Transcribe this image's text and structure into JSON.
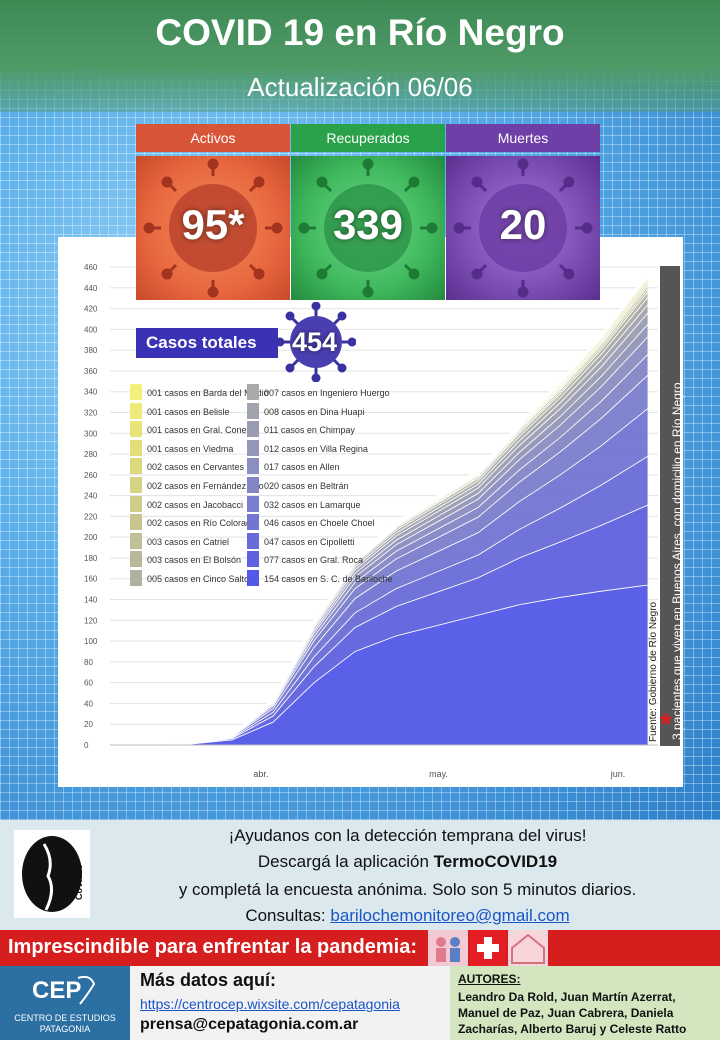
{
  "header": {
    "title": "COVID 19 en Río Negro",
    "subtitle": "Actualización  06/06"
  },
  "stats": [
    {
      "label": "Activos",
      "value": "95",
      "mark": "*",
      "label_color": "#d9553a",
      "box_color": "#e8683f"
    },
    {
      "label": "Recuperados",
      "value": "339",
      "label_color": "#2aa24a",
      "box_color": "#3fb85c"
    },
    {
      "label": "Muertes",
      "value": "20",
      "label_color": "#6e3fa6",
      "box_color": "#7c4eb4"
    }
  ],
  "totals": {
    "label": "Casos totales",
    "value": "454"
  },
  "legend": [
    {
      "text": "001 casos en Barda del Medio",
      "color": "#f3ef7a"
    },
    {
      "text": "001 casos en Belisle",
      "color": "#eeea7a"
    },
    {
      "text": "001 casos en Gral. Conesa",
      "color": "#e8e479"
    },
    {
      "text": "001 casos en Viedma",
      "color": "#e2df7a"
    },
    {
      "text": "002 casos en Cervantes",
      "color": "#dcd97d"
    },
    {
      "text": "002 casos en Fernández Oro",
      "color": "#d5d384"
    },
    {
      "text": "002 casos en Jacobacci",
      "color": "#cfcd88"
    },
    {
      "text": "002 casos en Río Colorado",
      "color": "#c8c68e"
    },
    {
      "text": "003 casos en Catriel",
      "color": "#c0bf95"
    },
    {
      "text": "003 casos en El Bolsón",
      "color": "#b8b89b"
    },
    {
      "text": "005 casos en Cinco Saltos",
      "color": "#b0b0a0"
    },
    {
      "text": "007 casos en Ingeniero Huergo",
      "color": "#a8a9a8"
    },
    {
      "text": "008 casos en Dina Huapi",
      "color": "#a1a3ad"
    },
    {
      "text": "011 casos en Chimpay",
      "color": "#9a9cb3"
    },
    {
      "text": "012 casos en Villa Regina",
      "color": "#9395b9"
    },
    {
      "text": "017 casos en Allen",
      "color": "#8b8ec0"
    },
    {
      "text": "020 casos en Beltrán",
      "color": "#8386c6"
    },
    {
      "text": "032 casos en Lamarque",
      "color": "#7b7ecc"
    },
    {
      "text": "046 casos en Choele Choel",
      "color": "#7275d2"
    },
    {
      "text": "047 casos en Cipolletti",
      "color": "#696cd8"
    },
    {
      "text": "077 casos en Gral. Roca",
      "color": "#5f62df"
    },
    {
      "text": "154 casos en S. C. de Bariloche",
      "color": "#5358e8"
    }
  ],
  "chart_data": {
    "type": "area",
    "stacked": true,
    "x_ticks": [
      "abr.",
      "may.",
      "jun."
    ],
    "yticks": [
      0,
      20,
      40,
      60,
      80,
      100,
      120,
      140,
      160,
      180,
      200,
      220,
      240,
      260,
      280,
      300,
      320,
      340,
      360,
      380,
      400,
      420,
      440,
      460
    ],
    "ylim": [
      0,
      460
    ],
    "x": [
      "2020-03-13",
      "2020-03-20",
      "2020-03-27",
      "2020-04-03",
      "2020-04-10",
      "2020-04-17",
      "2020-04-24",
      "2020-05-01",
      "2020-05-08",
      "2020-05-15",
      "2020-05-22",
      "2020-05-29",
      "2020-06-06"
    ],
    "total": [
      0,
      2,
      10,
      45,
      120,
      180,
      215,
      240,
      265,
      310,
      350,
      395,
      454
    ],
    "bariloche": [
      0,
      1,
      5,
      22,
      60,
      90,
      105,
      115,
      125,
      135,
      142,
      148,
      154
    ],
    "source_note": "Fuente: Gobierno de Río Negro",
    "footnote": "3 pacientes que viven en Buenos Aires, con domicilio en Río Negro",
    "footnote_mark": "*"
  },
  "info": {
    "line1": "¡Ayudanos con la detección temprana del virus!",
    "line2_prefix": "Descargá la aplicación ",
    "line2_app": "TermoCOVID19",
    "line3": "y completá la encuesta anónima. Solo son 5 minutos diarios.",
    "line4_prefix": "Consultas: ",
    "line4_email": "barilochemonitoreo@gmail.com",
    "logo_text_1": "Termómetro",
    "logo_text_2": "CoVid19"
  },
  "banner": {
    "text": "Imprescindible para enfrentar la pandemia:"
  },
  "footer": {
    "cep_short": "CEP",
    "cep_name_1": "CENTRO DE ESTUDIOS",
    "cep_name_2": "PATAGONIA",
    "mas_datos": "Más datos aquí:",
    "url": "https://centrocep.wixsite.com/cepatagonia",
    "email": "prensa@cepatagonia.com.ar",
    "autores_title": "AUTORES:",
    "autores_lines": [
      "Leandro Da Rold, Juan Martín Azerrat,",
      "Manuel de Paz, Juan Cabrera, Daniela",
      "Zacharías, Alberto Baruj y Celeste Ratto"
    ]
  }
}
